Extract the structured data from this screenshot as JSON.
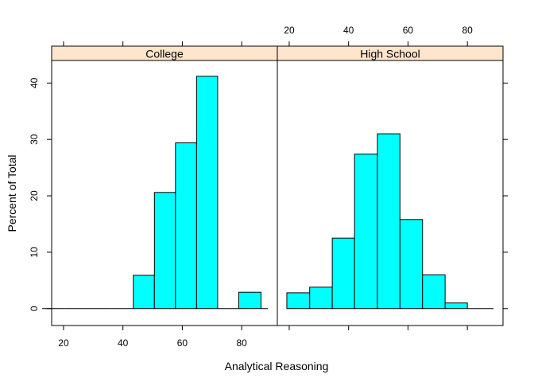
{
  "chart_data": {
    "type": "bar",
    "subtype": "histogram",
    "layout": "lattice-two-panels-side-by-side",
    "xlabel": "Analytical Reasoning",
    "ylabel": "Percent of Total",
    "xlim": [
      16,
      92
    ],
    "ylim": [
      -3,
      44
    ],
    "x_ticks": [
      20,
      40,
      60,
      80
    ],
    "y_ticks": [
      0,
      10,
      20,
      30,
      40
    ],
    "bar_fill": "#00ffff",
    "bar_stroke": "#000000",
    "strip_fill": "#ffe5cc",
    "panels": [
      {
        "strip_label": "College",
        "bins": [
          {
            "x0": 12.8,
            "x1": 20.5,
            "value": 0
          },
          {
            "x0": 20.5,
            "x1": 28.2,
            "value": 0
          },
          {
            "x0": 28.2,
            "x1": 35.9,
            "value": 0
          },
          {
            "x0": 35.9,
            "x1": 43.5,
            "value": 0
          },
          {
            "x0": 43.5,
            "x1": 50.6,
            "value": 5.9
          },
          {
            "x0": 50.6,
            "x1": 57.7,
            "value": 20.6
          },
          {
            "x0": 57.7,
            "x1": 64.8,
            "value": 29.4
          },
          {
            "x0": 64.8,
            "x1": 71.9,
            "value": 41.2
          },
          {
            "x0": 71.9,
            "x1": 79.0,
            "value": 0
          },
          {
            "x0": 79.0,
            "x1": 86.5,
            "value": 2.9
          },
          {
            "x0": 86.5,
            "x1": 88.8,
            "value": 0
          }
        ]
      },
      {
        "strip_label": "High School",
        "bins": [
          {
            "x0": 19.2,
            "x1": 26.9,
            "value": 2.8
          },
          {
            "x0": 26.9,
            "x1": 34.5,
            "value": 3.8
          },
          {
            "x0": 34.5,
            "x1": 42.0,
            "value": 12.5
          },
          {
            "x0": 42.0,
            "x1": 49.7,
            "value": 27.4
          },
          {
            "x0": 49.7,
            "x1": 57.3,
            "value": 31.0
          },
          {
            "x0": 57.3,
            "x1": 64.9,
            "value": 15.8
          },
          {
            "x0": 64.9,
            "x1": 72.5,
            "value": 6.0
          },
          {
            "x0": 72.5,
            "x1": 80.0,
            "value": 1.0
          },
          {
            "x0": 80.0,
            "x1": 88.8,
            "value": 0
          }
        ]
      }
    ]
  }
}
